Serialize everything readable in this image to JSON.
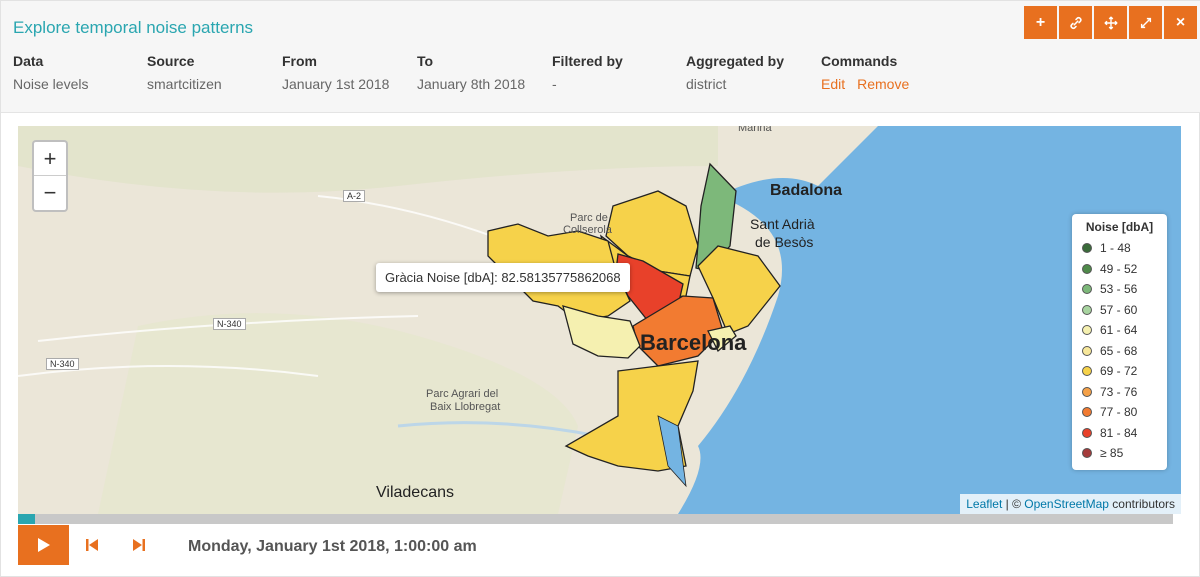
{
  "panel": {
    "title": "Explore temporal noise patterns"
  },
  "tools": [
    {
      "name": "add-icon",
      "glyph": "+"
    },
    {
      "name": "link-icon"
    },
    {
      "name": "move-icon"
    },
    {
      "name": "expand-icon"
    },
    {
      "name": "close-icon",
      "glyph": "×"
    }
  ],
  "meta": {
    "data_label": "Data",
    "data_value": "Noise levels",
    "source_label": "Source",
    "source_value": "smartcitizen",
    "from_label": "From",
    "from_value": "January 1st 2018",
    "to_label": "To",
    "to_value": "January 8th 2018",
    "filtered_label": "Filtered by",
    "filtered_value": "-",
    "aggregated_label": "Aggregated by",
    "aggregated_value": "district",
    "commands_label": "Commands",
    "edit_label": "Edit",
    "remove_label": "Remove"
  },
  "map": {
    "zoom_in": "+",
    "zoom_out": "−",
    "labels": {
      "badalona": "Badalona",
      "sant_adria_1": "Sant Adrià",
      "sant_adria_2": "de Besòs",
      "parc_1": "Parc de",
      "parc_2": "Collserola",
      "barcelona": "Barcelona",
      "parc_agrari_1": "Parc Agrari del",
      "parc_agrari_2": "Baix Llobregat",
      "viladecans": "Viladecans",
      "marina": "Marina"
    },
    "roads": {
      "a2": "A-2",
      "n340a": "N-340",
      "n340b": "N-340"
    },
    "tooltip": "Gràcia Noise [dbA]: 82.58135775862068",
    "attribution_leaflet": "Leaflet",
    "attribution_sep": " | © ",
    "attribution_osm": "OpenStreetMap",
    "attribution_tail": " contributors"
  },
  "legend": {
    "title": "Noise [dbA]",
    "items": [
      {
        "label": "1 - 48",
        "color": "#3a6b3a"
      },
      {
        "label": "49 - 52",
        "color": "#4f8a4a"
      },
      {
        "label": "53 - 56",
        "color": "#7db87a"
      },
      {
        "label": "57 - 60",
        "color": "#a8d4a0"
      },
      {
        "label": "61 - 64",
        "color": "#f5f0b0"
      },
      {
        "label": "65 - 68",
        "color": "#f7e79a"
      },
      {
        "label": "69 - 72",
        "color": "#f6d24a"
      },
      {
        "label": "73 - 76",
        "color": "#f5a148"
      },
      {
        "label": "77 - 80",
        "color": "#f27b31"
      },
      {
        "label": "81 - 84",
        "color": "#e8412a"
      },
      {
        "label": "≥ 85",
        "color": "#a43b3b"
      }
    ]
  },
  "player": {
    "progress": 0.015,
    "datetime": "Monday, January 1st 2018, 1:00:00 am"
  }
}
